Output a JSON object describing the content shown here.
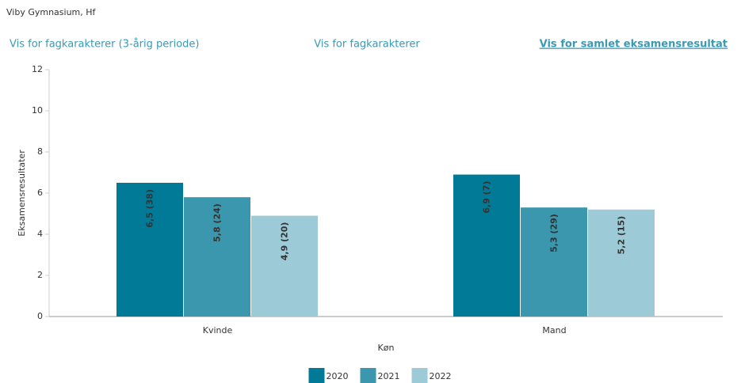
{
  "header": {
    "title": "Viby Gymnasium, Hf",
    "tabs": [
      "Vis for fagkarakterer (3-årig periode)",
      "Vis for fagkarakterer",
      "Vis for samlet eksamensresultat"
    ]
  },
  "chart_data": {
    "type": "bar",
    "x_label": "Køn",
    "y_label": "Eksamensresultater",
    "categories": [
      "Kvinde",
      "Mand"
    ],
    "series": [
      {
        "name": "2020",
        "color": "#007a96",
        "values": [
          6.5,
          6.9
        ],
        "value_labels": [
          "6,5 (38)",
          "6,9 (7)"
        ]
      },
      {
        "name": "2021",
        "color": "#3a97ad",
        "values": [
          5.8,
          5.3
        ],
        "value_labels": [
          "5,8 (24)",
          "5,3 (29)"
        ]
      },
      {
        "name": "2022",
        "color": "#9ccad6",
        "values": [
          4.9,
          5.2
        ],
        "value_labels": [
          "4,9 (20)",
          "5,2 (15)"
        ]
      }
    ],
    "ylim": [
      0,
      12
    ],
    "yticks": [
      0,
      2,
      4,
      6,
      8,
      10,
      12
    ],
    "grid": false,
    "legend": "bottom"
  }
}
